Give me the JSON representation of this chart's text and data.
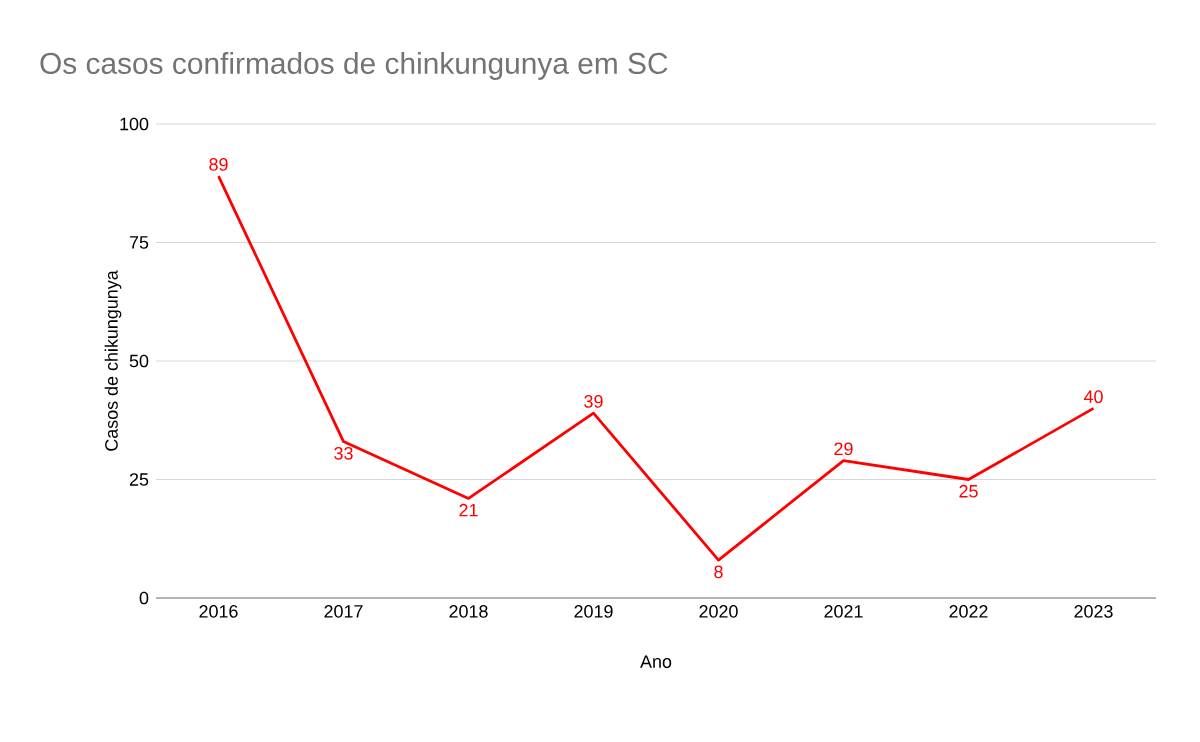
{
  "chart_data": {
    "type": "line",
    "title": "Os casos confirmados de chinkungunya em SC",
    "xlabel": "Ano",
    "ylabel": "Casos de chikungunya",
    "categories": [
      "2016",
      "2017",
      "2018",
      "2019",
      "2020",
      "2021",
      "2022",
      "2023"
    ],
    "values": [
      89,
      33,
      21,
      39,
      8,
      29,
      25,
      40
    ],
    "color": "#ff0000",
    "ylim": [
      0,
      100
    ],
    "yticks": [
      0,
      25,
      50,
      75,
      100
    ],
    "grid": "y",
    "data_labels": true,
    "line_style": "solid"
  }
}
